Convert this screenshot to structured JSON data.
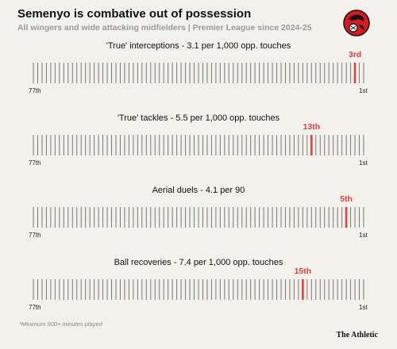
{
  "header": {
    "title": "Semenyo is combative out of possession",
    "subtitle": "All wingers and wide attacking midfielders | Premier League since 2024-25",
    "crest_icon": "afc-bournemouth-crest-icon"
  },
  "colors": {
    "background": "#f3f1ec",
    "tick": "#7a7a7a",
    "highlight": "#e0413f"
  },
  "chart_data": [
    {
      "type": "strip",
      "title": "'True' interceptions - 3.1 per 1,000 opp. touches",
      "total_players": 77,
      "highlight_rank": 3,
      "highlight_label": "3rd",
      "left_label": "77th",
      "right_label": "1st"
    },
    {
      "type": "strip",
      "title": "'True' tackles - 5.5 per 1,000 opp. touches",
      "total_players": 77,
      "highlight_rank": 13,
      "highlight_label": "13th",
      "left_label": "77th",
      "right_label": "1st"
    },
    {
      "type": "strip",
      "title": "Aerial duels - 4.1 per 90",
      "total_players": 77,
      "highlight_rank": 5,
      "highlight_label": "5th",
      "left_label": "77th",
      "right_label": "1st"
    },
    {
      "type": "strip",
      "title": "Ball recoveries - 7.4 per 1,000 opp. touches",
      "total_players": 77,
      "highlight_rank": 15,
      "highlight_label": "15th",
      "left_label": "77th",
      "right_label": "1st"
    }
  ],
  "footer": {
    "note": "*Minimum 900+ minutes played",
    "brand": "The Athletic"
  }
}
